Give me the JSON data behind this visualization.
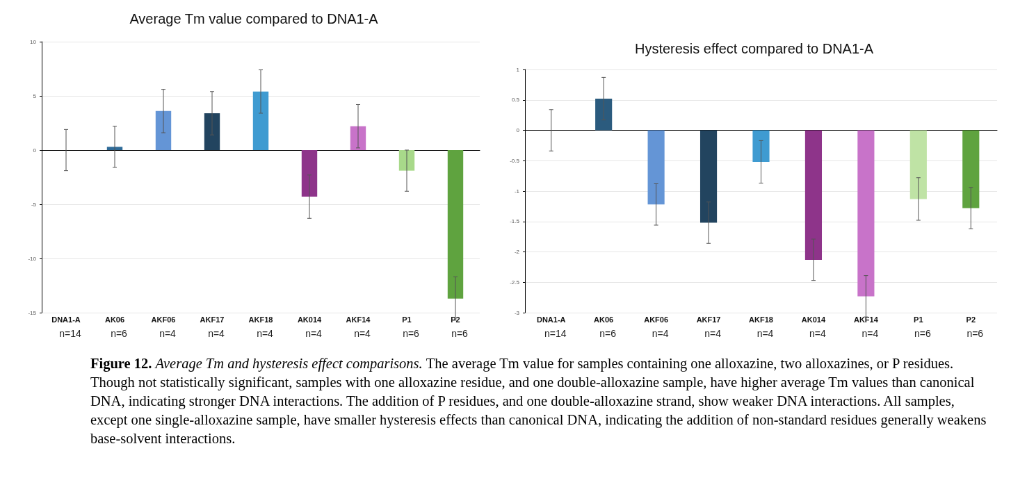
{
  "chart_data": [
    {
      "type": "bar",
      "title": "Average Tm value compared to DNA1-A",
      "categories": [
        "DNA1-A\nn=14",
        "AK06\nn=6",
        "AKF06\nn=4",
        "AKF17\nn=4",
        "AKF18\nn=4",
        "AK014\nn=4",
        "AKF14\nn=4",
        "P1\nn=6",
        "P2\nn=6"
      ],
      "values": [
        0,
        0.3,
        3.6,
        3.4,
        5.4,
        -4.3,
        2.2,
        -1.9,
        -13.7
      ],
      "errors": [
        1.9,
        1.9,
        2,
        2,
        2,
        2,
        2,
        1.9,
        2
      ],
      "colors": [
        "#2f6b98",
        "#2f6b98",
        "#6495d6",
        "#22445f",
        "#3f9bd1",
        "#8e348a",
        "#c873c9",
        "#a8d98a",
        "#5fa33f"
      ],
      "ylim": [
        -15,
        10
      ],
      "yticks": [
        -15,
        -10,
        -5,
        0,
        5,
        10
      ],
      "grid": "y",
      "annotations": [
        "Figure 12.",
        "Average Tm and hysteresis effect comparisons.",
        "The average Tm value for samples containing one alloxazine, two alloxazines, or P residues. Though not statistically significant, samples with one alloxazine residue, and one double-alloxazine sample, have higher average Tm values than canonical DNA, indicating stronger DNA interactions. The addition of P residues, and one double-alloxazine strand, show weaker DNA interactions. All samples, except one single-alloxazine sample, have smaller hysteresis effects than canonical DNA, indicating the addition of non-standard residues generally weakens base-solvent interactions."
      ]
    },
    {
      "type": "bar",
      "title": "Hysteresis effect compared to DNA1-A",
      "categories": [
        "DNA1-A\nn=14",
        "AK06\nn=6",
        "AKF06\nn=4",
        "AKF17\nn=4",
        "AKF18\nn=4",
        "AK014\nn=4",
        "AKF14\nn=4",
        "P1\nn=6",
        "P2\nn=6"
      ],
      "values": [
        0,
        0.52,
        -1.22,
        -1.52,
        -0.52,
        -2.13,
        -2.73,
        -1.13,
        -1.28
      ],
      "errors": [
        0.34,
        0.35,
        0.34,
        0.34,
        0.35,
        0.34,
        0.34,
        0.35,
        0.34
      ],
      "colors": [
        "#2b5b7e",
        "#2b5b7e",
        "#6495d6",
        "#22445f",
        "#3f9bd1",
        "#8e348a",
        "#c873c9",
        "#bfe3a5",
        "#5fa33f"
      ],
      "ylim": [
        -3,
        1
      ],
      "yticks": [
        -3,
        -2.5,
        -2,
        -1.5,
        -1,
        -0.5,
        0,
        0.5,
        1
      ],
      "grid": "y"
    }
  ]
}
